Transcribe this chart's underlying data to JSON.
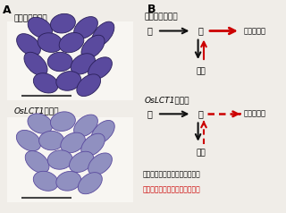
{
  "bg_color": "#f0ede8",
  "panel_a_label": "A",
  "panel_b_label": "B",
  "control_label": "コントロール株",
  "oslct1_label": "OsLCT1抑制株",
  "node_ne": "根",
  "node_setsu": "節",
  "node_ho": "穂（コメ）",
  "node_ha": "葉身",
  "legend_black": "黒矢印：カドミウムの導管輸送",
  "legend_red": "赤矢印：カドミウムの笶管輸送",
  "black_color": "#111111",
  "red_color": "#cc0000",
  "scale_bar_color": "#444444",
  "ctrl_grain_color": "#5a4a9e",
  "ctrl_grain_edge": "#2a1f5a",
  "oslct1_grain_color": "#9090c0",
  "oslct1_grain_edge": "#5a4a9e",
  "white_bg": "#f8f6f2"
}
